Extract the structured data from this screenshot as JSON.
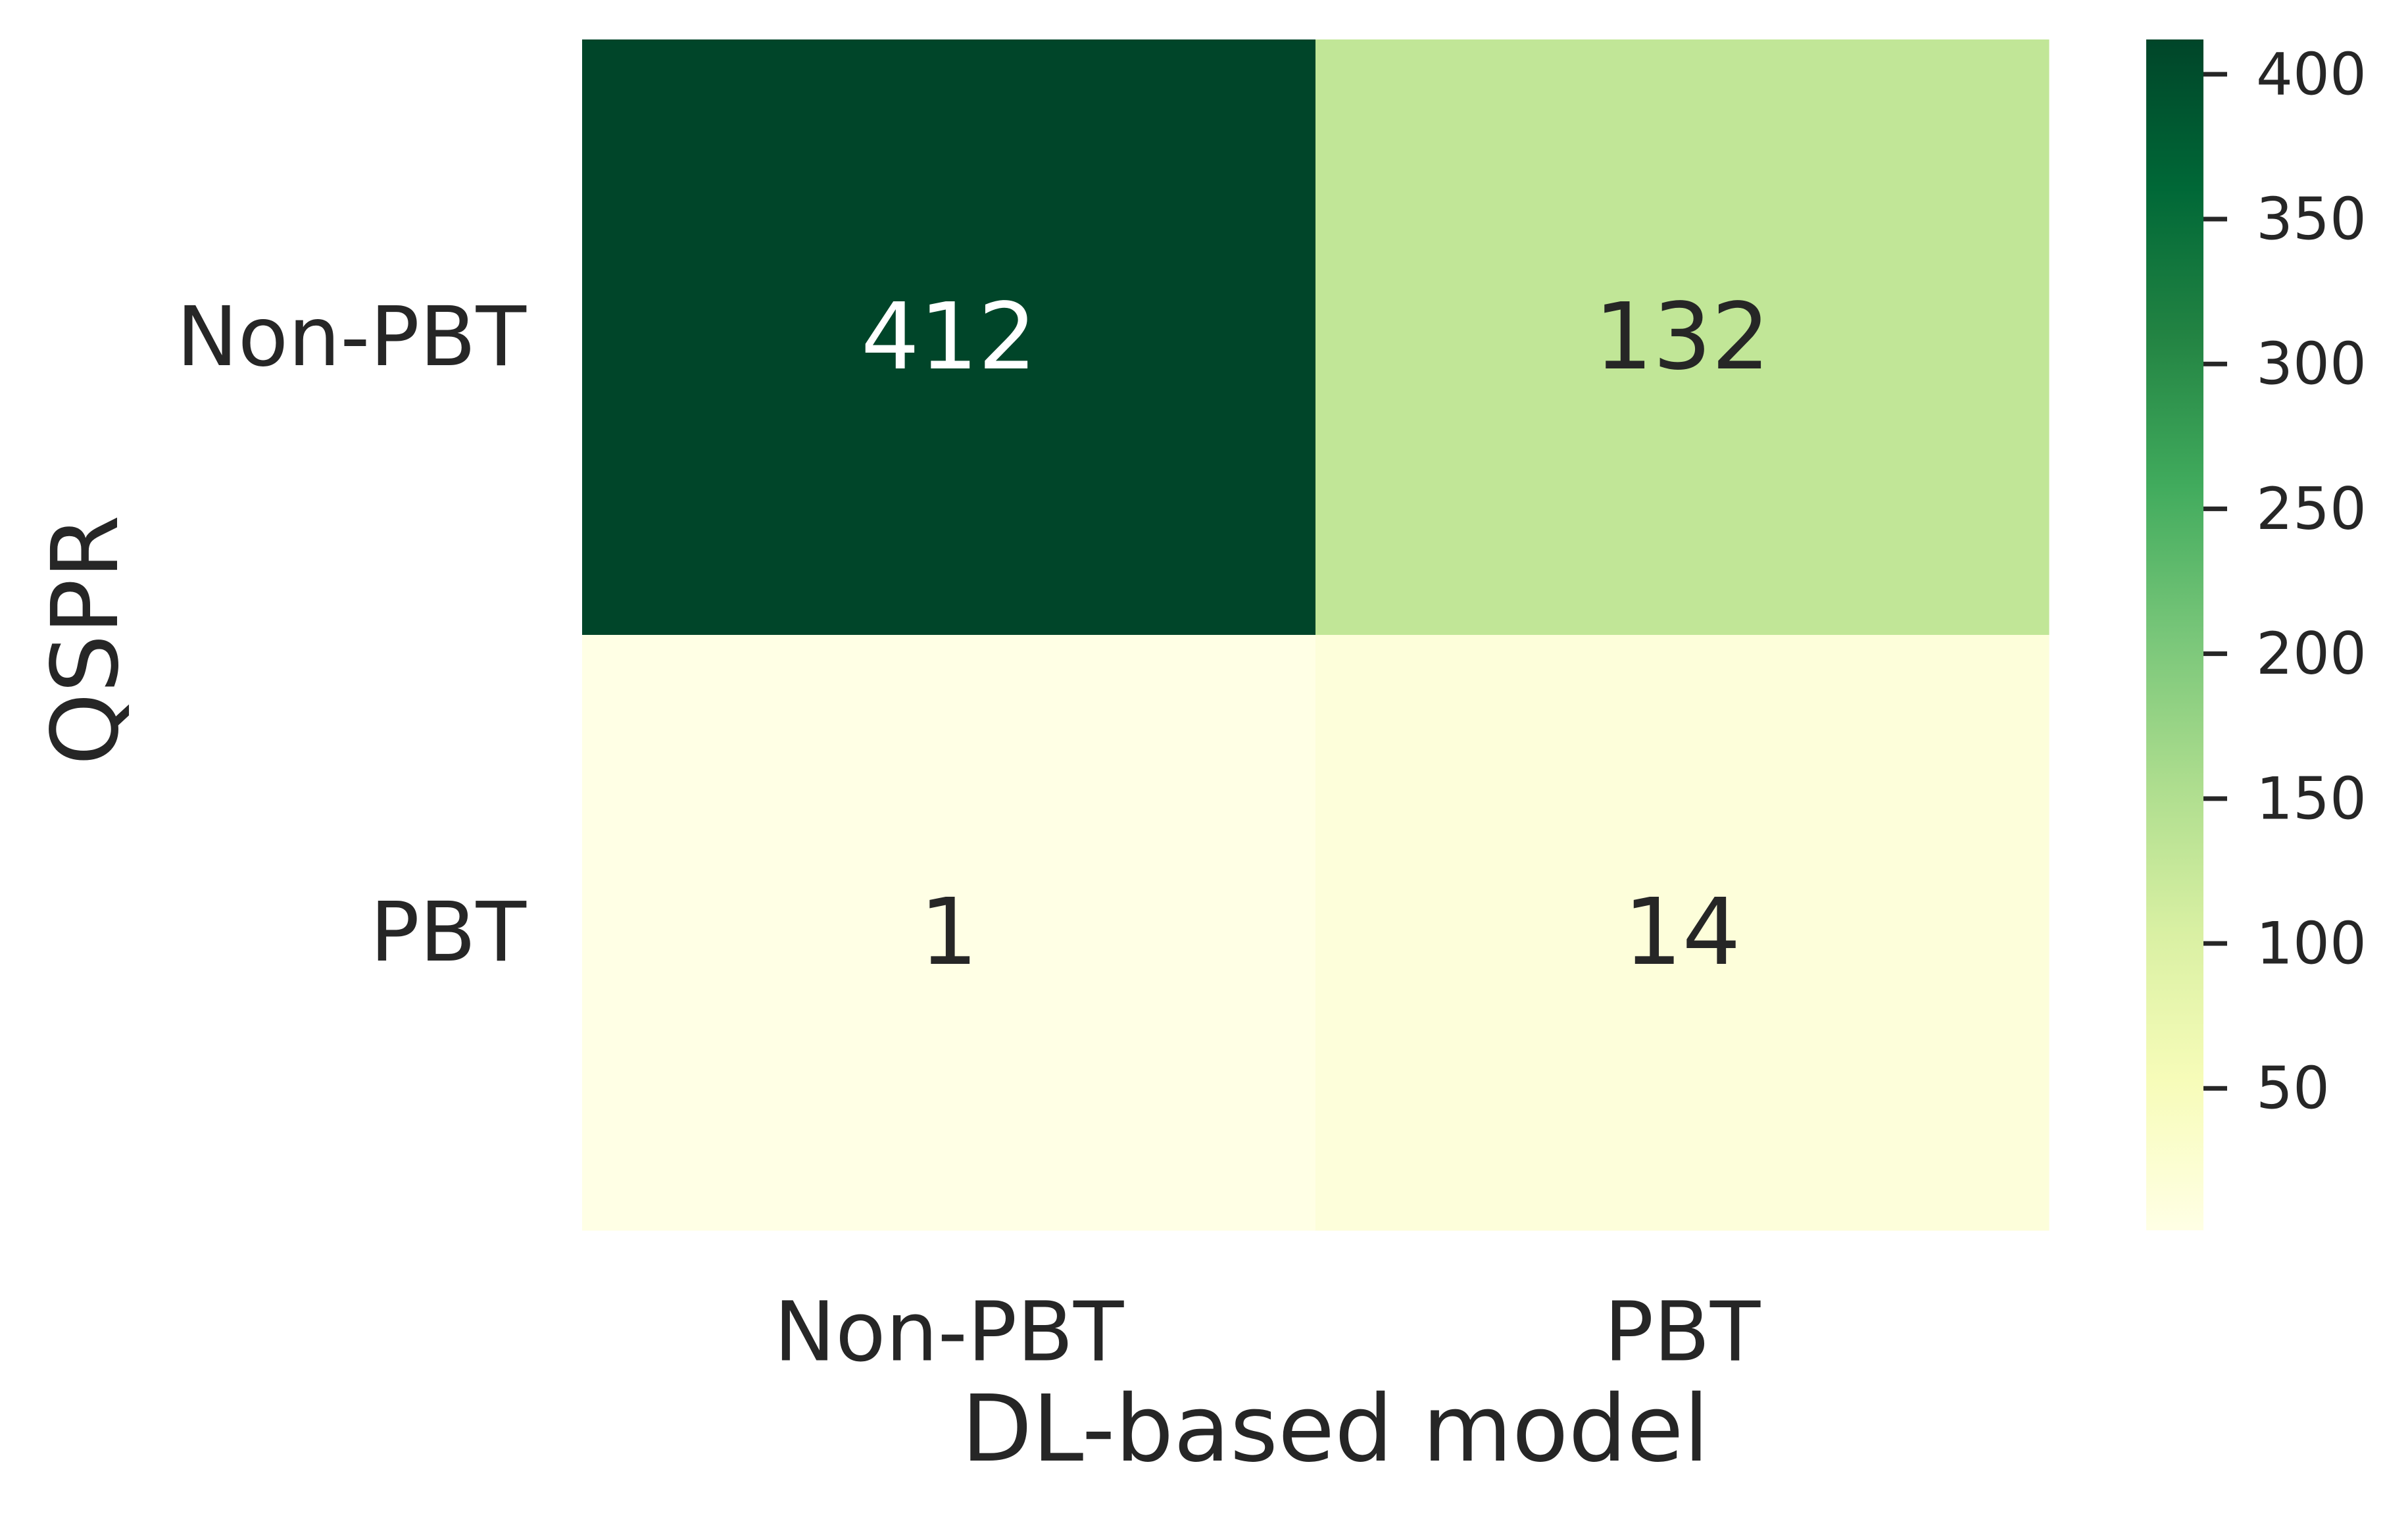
{
  "chart_data": {
    "type": "heatmap",
    "title": "",
    "xlabel": "DL-based model",
    "ylabel": "QSPR",
    "x_categories": [
      "Non-PBT",
      "PBT"
    ],
    "y_categories": [
      "Non-PBT",
      "PBT"
    ],
    "values": [
      [
        412,
        132
      ],
      [
        1,
        14
      ]
    ],
    "colormap": "YlGn",
    "color_range": [
      1,
      412
    ],
    "colorbar_ticks": [
      50,
      100,
      150,
      200,
      250,
      300,
      350,
      400
    ],
    "grid": false,
    "legend": "colorbar-right"
  }
}
